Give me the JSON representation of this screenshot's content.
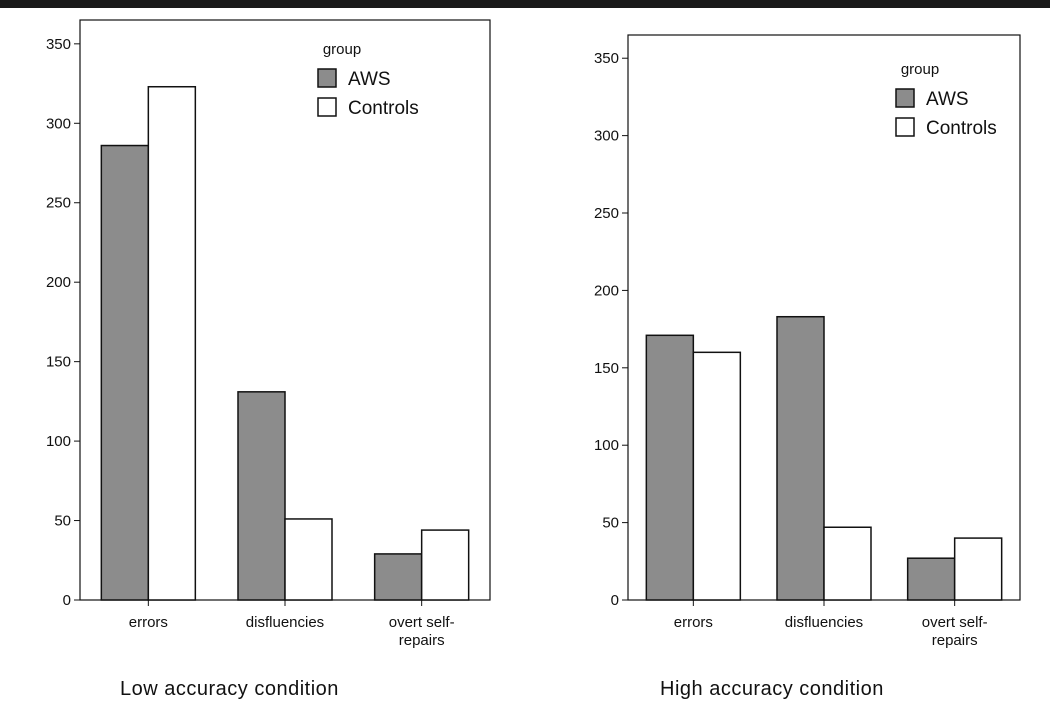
{
  "chart_data": [
    {
      "type": "bar",
      "caption": "Low accuracy condition",
      "categories": [
        "errors",
        "disfluencies",
        "overt self-repairs"
      ],
      "series": [
        {
          "name": "AWS",
          "values": [
            286,
            131,
            29
          ],
          "color": "#8c8c8c"
        },
        {
          "name": "Controls",
          "values": [
            323,
            51,
            44
          ],
          "color": "#ffffff"
        }
      ],
      "legend_title": "group",
      "legend_position": "top-right",
      "ylim": [
        0,
        365
      ],
      "yticks": [
        0,
        50,
        100,
        150,
        200,
        250,
        300,
        350
      ],
      "grid": false
    },
    {
      "type": "bar",
      "caption": "High accuracy condition",
      "categories": [
        "errors",
        "disfluencies",
        "overt self-repairs"
      ],
      "series": [
        {
          "name": "AWS",
          "values": [
            171,
            183,
            27
          ],
          "color": "#8c8c8c"
        },
        {
          "name": "Controls",
          "values": [
            160,
            47,
            40
          ],
          "color": "#ffffff"
        }
      ],
      "legend_title": "group",
      "legend_position": "top-right",
      "ylim": [
        0,
        365
      ],
      "yticks": [
        0,
        50,
        100,
        150,
        200,
        250,
        300,
        350
      ],
      "grid": false
    }
  ]
}
